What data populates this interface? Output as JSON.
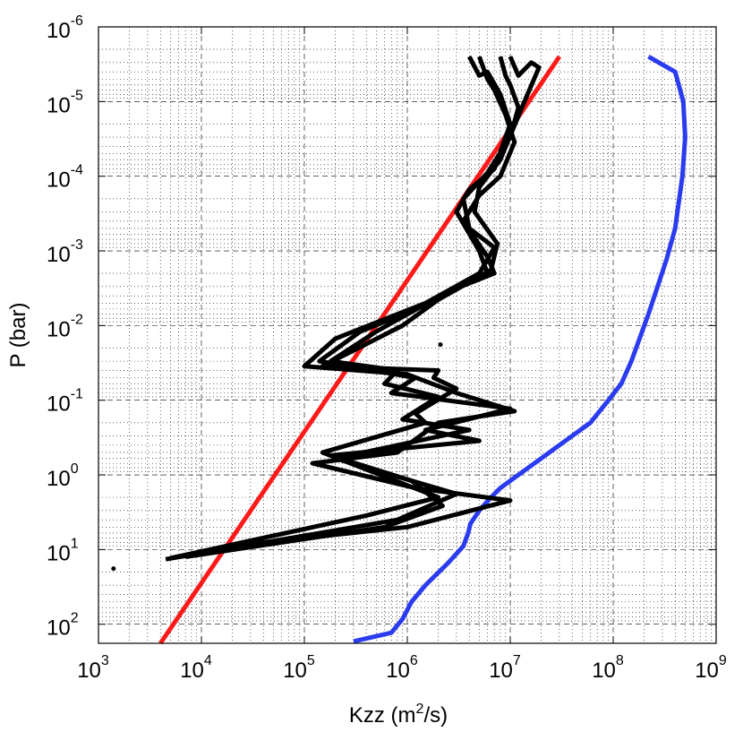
{
  "chart_data": {
    "type": "line",
    "title": "",
    "xlabel": "Kzz (m2/s)",
    "xlabel_parts": {
      "main": "Kzz (m",
      "sup": "2",
      "tail": "/s)"
    },
    "ylabel": "P (bar)",
    "xscale": "log",
    "yscale": "log",
    "yreversed": true,
    "xlim": [
      1000,
      1000000000
    ],
    "ylim": [
      180,
      1e-06
    ],
    "grid": true,
    "x_ticks": [
      {
        "base": "10",
        "exp": "3"
      },
      {
        "base": "10",
        "exp": "4"
      },
      {
        "base": "10",
        "exp": "5"
      },
      {
        "base": "10",
        "exp": "6"
      },
      {
        "base": "10",
        "exp": "7"
      },
      {
        "base": "10",
        "exp": "8"
      },
      {
        "base": "10",
        "exp": "9"
      }
    ],
    "y_ticks": [
      {
        "base": "10",
        "exp": "-6"
      },
      {
        "base": "10",
        "exp": "-5"
      },
      {
        "base": "10",
        "exp": "-4"
      },
      {
        "base": "10",
        "exp": "-3"
      },
      {
        "base": "10",
        "exp": "-2"
      },
      {
        "base": "10",
        "exp": "-1"
      },
      {
        "base": "10",
        "exp": "0"
      },
      {
        "base": "10",
        "exp": "1"
      },
      {
        "base": "10",
        "exp": "2"
      }
    ],
    "series": [
      {
        "color": "#2b3cf0",
        "points": [
          [
            300000,
            170
          ],
          [
            700000,
            130
          ],
          [
            900000,
            85
          ],
          [
            1100000,
            50
          ],
          [
            1500000,
            30
          ],
          [
            2500000,
            15
          ],
          [
            3500000,
            9
          ],
          [
            3900000,
            6
          ],
          [
            4100000,
            4.5
          ],
          [
            5000000,
            3
          ],
          [
            6500000,
            2
          ],
          [
            8000000,
            1.5
          ],
          [
            12000000,
            1
          ],
          [
            20000000,
            0.6
          ],
          [
            40000000,
            0.3
          ],
          [
            60000000,
            0.2
          ],
          [
            90000000,
            0.1
          ],
          [
            120000000,
            0.06
          ],
          [
            150000000,
            0.03
          ],
          [
            180000000,
            0.015
          ],
          [
            220000000,
            0.007
          ],
          [
            270000000,
            0.003
          ],
          [
            330000000,
            0.0013
          ],
          [
            400000000,
            0.0005
          ],
          [
            470000000,
            0.0001
          ],
          [
            500000000,
            3e-05
          ],
          [
            480000000,
            1e-05
          ],
          [
            400000000,
            4e-06
          ],
          [
            220000000,
            2.5e-06
          ]
        ]
      },
      {
        "color": "#ff1a1a",
        "points": [
          [
            4000,
            180
          ],
          [
            30000000,
            2.5e-06
          ]
        ]
      },
      {
        "color": "#000000",
        "points": [
          [
            4000000,
            2.5e-06
          ],
          [
            5000000,
            4.5e-06
          ],
          [
            6000000,
            4e-06
          ],
          [
            8000000,
            8e-06
          ],
          [
            10000000,
            2e-05
          ],
          [
            7000000,
            8e-05
          ],
          [
            4000000,
            0.00015
          ],
          [
            3000000,
            0.0003
          ],
          [
            5000000,
            0.001
          ],
          [
            6000000,
            0.002
          ],
          [
            3000000,
            0.003
          ],
          [
            900000,
            0.01
          ],
          [
            150000,
            0.035
          ],
          [
            2000000,
            0.04
          ],
          [
            1800000,
            0.05
          ],
          [
            3000000,
            0.07
          ],
          [
            1200000,
            0.15
          ],
          [
            1500000,
            0.2
          ],
          [
            150000,
            0.5
          ],
          [
            2000000,
            2
          ],
          [
            400000,
            3.5
          ],
          [
            5000,
            13
          ]
        ]
      },
      {
        "color": "#000000",
        "points": [
          [
            5000000,
            2.5e-06
          ],
          [
            6000000,
            5e-06
          ],
          [
            7000000,
            7e-06
          ],
          [
            9000000,
            1.5e-05
          ],
          [
            11000000,
            3.5e-05
          ],
          [
            8000000,
            0.0001
          ],
          [
            5000000,
            0.00018
          ],
          [
            3500000,
            0.0004
          ],
          [
            6000000,
            0.0012
          ],
          [
            7000000,
            0.002
          ],
          [
            2500000,
            0.0035
          ],
          [
            500000,
            0.012
          ],
          [
            180000,
            0.03
          ],
          [
            800000,
            0.04
          ],
          [
            600000,
            0.06
          ],
          [
            2000000,
            0.09
          ],
          [
            900000,
            0.18
          ],
          [
            4000000,
            0.25
          ],
          [
            200000,
            0.6
          ],
          [
            3000000,
            1.8
          ],
          [
            800000,
            4
          ],
          [
            4500,
            13.5
          ]
        ]
      },
      {
        "color": "#000000",
        "points": [
          [
            8000000,
            2.5e-06
          ],
          [
            9000000,
            4.5e-06
          ],
          [
            10000000,
            6e-06
          ],
          [
            12000000,
            1.2e-05
          ],
          [
            10000000,
            3e-05
          ],
          [
            6000000,
            9e-05
          ],
          [
            3500000,
            0.0002
          ],
          [
            4000000,
            0.0005
          ],
          [
            7000000,
            0.0009
          ],
          [
            5000000,
            0.002
          ],
          [
            1500000,
            0.005
          ],
          [
            200000,
            0.015
          ],
          [
            100000,
            0.035
          ],
          [
            1000000,
            0.045
          ],
          [
            3000000,
            0.08
          ],
          [
            11000000,
            0.14
          ],
          [
            2000000,
            0.2
          ],
          [
            800000,
            0.5
          ],
          [
            120000,
            0.7
          ],
          [
            1200000,
            1.5
          ],
          [
            10000000,
            2.2
          ],
          [
            1000000,
            5
          ],
          [
            40000,
            8
          ],
          [
            5000,
            13
          ]
        ]
      },
      {
        "color": "#000000",
        "points": [
          [
            10000000,
            2.5e-06
          ],
          [
            12000000,
            4.5e-06
          ],
          [
            16000000,
            3e-06
          ],
          [
            19000000,
            3.5e-06
          ],
          [
            13000000,
            1.2e-05
          ],
          [
            8000000,
            6e-05
          ],
          [
            5000000,
            0.00014
          ],
          [
            4500000,
            0.0003
          ],
          [
            7500000,
            0.0008
          ],
          [
            6500000,
            0.0018
          ],
          [
            2000000,
            0.0045
          ],
          [
            350000,
            0.012
          ],
          [
            140000,
            0.03
          ],
          [
            1200000,
            0.05
          ],
          [
            700000,
            0.08
          ],
          [
            10000000,
            0.13
          ],
          [
            1500000,
            0.25
          ],
          [
            5000000,
            0.35
          ],
          [
            180000,
            0.55
          ],
          [
            1100000,
            1.2
          ],
          [
            2200000,
            2.6
          ],
          [
            600000,
            5
          ],
          [
            7000,
            12.5
          ]
        ]
      }
    ],
    "markers": [
      {
        "x": 2100000,
        "y": 0.018,
        "color": "#000000"
      },
      {
        "x": 1400,
        "y": 18,
        "color": "#000000"
      }
    ]
  }
}
